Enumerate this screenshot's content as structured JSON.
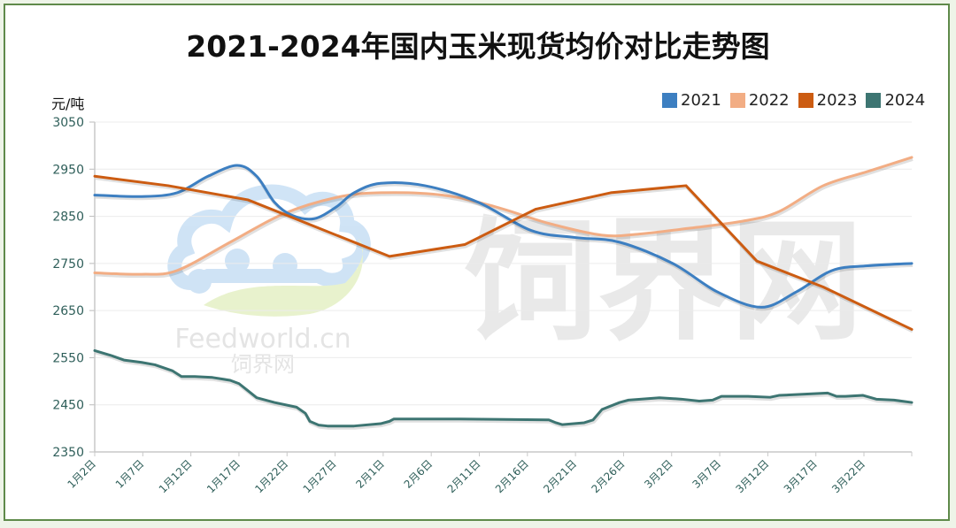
{
  "header": {
    "title": "2021-2024年国内玉米现货均价对比走势图",
    "unit_label": "元/吨"
  },
  "legend": [
    {
      "label": "2021",
      "color": "#3d7fc1"
    },
    {
      "label": "2022",
      "color": "#f2ad84"
    },
    {
      "label": "2023",
      "color": "#cc5c12"
    },
    {
      "label": "2024",
      "color": "#3d7572"
    }
  ],
  "watermark": {
    "latin": "Feedworld.cn",
    "small_cn": "饲界网",
    "large_cn": "饲界网"
  },
  "chart_data": {
    "type": "line",
    "title": "2021-2024年国内玉米现货均价对比走势图",
    "xlabel": "",
    "ylabel": "元/吨",
    "ylim": [
      2350,
      3050
    ],
    "yticks": [
      2350,
      2450,
      2550,
      2650,
      2750,
      2850,
      2950,
      3050
    ],
    "grid": true,
    "legend_position": "top-right",
    "x_ticks": [
      "1月2日",
      "1月7日",
      "1月12日",
      "1月17日",
      "1月22日",
      "1月27日",
      "2月1日",
      "2月6日",
      "2月11日",
      "2月16日",
      "2月21日",
      "2月26日",
      "3月2日",
      "3月7日",
      "3月12日",
      "3月17日",
      "3月22日"
    ],
    "series": [
      {
        "name": "2021",
        "color": "#3d7fc1",
        "smooth": true,
        "points": [
          [
            107,
            2895
          ],
          [
            160,
            2892
          ],
          [
            200,
            2900
          ],
          [
            235,
            2935
          ],
          [
            268,
            2958
          ],
          [
            290,
            2935
          ],
          [
            310,
            2880
          ],
          [
            330,
            2852
          ],
          [
            355,
            2845
          ],
          [
            380,
            2870
          ],
          [
            400,
            2900
          ],
          [
            430,
            2920
          ],
          [
            480,
            2915
          ],
          [
            540,
            2880
          ],
          [
            600,
            2820
          ],
          [
            650,
            2805
          ],
          [
            700,
            2795
          ],
          [
            760,
            2750
          ],
          [
            810,
            2690
          ],
          [
            860,
            2657
          ],
          [
            900,
            2690
          ],
          [
            940,
            2735
          ],
          [
            980,
            2745
          ],
          [
            1030,
            2750
          ]
        ]
      },
      {
        "name": "2022",
        "color": "#f2ad84",
        "smooth": true,
        "points": [
          [
            107,
            2730
          ],
          [
            160,
            2727
          ],
          [
            200,
            2735
          ],
          [
            260,
            2795
          ],
          [
            320,
            2855
          ],
          [
            380,
            2890
          ],
          [
            430,
            2900
          ],
          [
            500,
            2895
          ],
          [
            560,
            2870
          ],
          [
            620,
            2835
          ],
          [
            680,
            2810
          ],
          [
            720,
            2812
          ],
          [
            780,
            2825
          ],
          [
            840,
            2840
          ],
          [
            880,
            2860
          ],
          [
            930,
            2915
          ],
          [
            980,
            2945
          ],
          [
            1030,
            2975
          ]
        ]
      },
      {
        "name": "2023",
        "color": "#cc5c12",
        "smooth": false,
        "points": [
          [
            107,
            2935
          ],
          [
            190,
            2915
          ],
          [
            280,
            2885
          ],
          [
            340,
            2840
          ],
          [
            440,
            2765
          ],
          [
            525,
            2790
          ],
          [
            605,
            2865
          ],
          [
            690,
            2900
          ],
          [
            775,
            2915
          ],
          [
            855,
            2755
          ],
          [
            930,
            2700
          ],
          [
            1030,
            2610
          ]
        ]
      },
      {
        "name": "2024",
        "color": "#3d7572",
        "smooth": false,
        "points": [
          [
            107,
            2565
          ],
          [
            125,
            2555
          ],
          [
            140,
            2545
          ],
          [
            160,
            2540
          ],
          [
            175,
            2535
          ],
          [
            195,
            2522
          ],
          [
            205,
            2510
          ],
          [
            220,
            2510
          ],
          [
            240,
            2508
          ],
          [
            260,
            2502
          ],
          [
            270,
            2495
          ],
          [
            280,
            2480
          ],
          [
            290,
            2465
          ],
          [
            310,
            2455
          ],
          [
            335,
            2445
          ],
          [
            345,
            2432
          ],
          [
            350,
            2415
          ],
          [
            360,
            2407
          ],
          [
            370,
            2405
          ],
          [
            400,
            2405
          ],
          [
            430,
            2410
          ],
          [
            440,
            2415
          ],
          [
            445,
            2420
          ],
          [
            480,
            2420
          ],
          [
            520,
            2420
          ],
          [
            570,
            2419
          ],
          [
            620,
            2418
          ],
          [
            628,
            2412
          ],
          [
            635,
            2408
          ],
          [
            660,
            2412
          ],
          [
            670,
            2418
          ],
          [
            680,
            2440
          ],
          [
            700,
            2455
          ],
          [
            710,
            2460
          ],
          [
            745,
            2465
          ],
          [
            770,
            2462
          ],
          [
            790,
            2458
          ],
          [
            805,
            2460
          ],
          [
            815,
            2468
          ],
          [
            845,
            2468
          ],
          [
            870,
            2466
          ],
          [
            880,
            2470
          ],
          [
            935,
            2475
          ],
          [
            945,
            2468
          ],
          [
            955,
            2468
          ],
          [
            975,
            2470
          ],
          [
            990,
            2462
          ],
          [
            1010,
            2460
          ],
          [
            1030,
            2455
          ]
        ]
      }
    ]
  }
}
